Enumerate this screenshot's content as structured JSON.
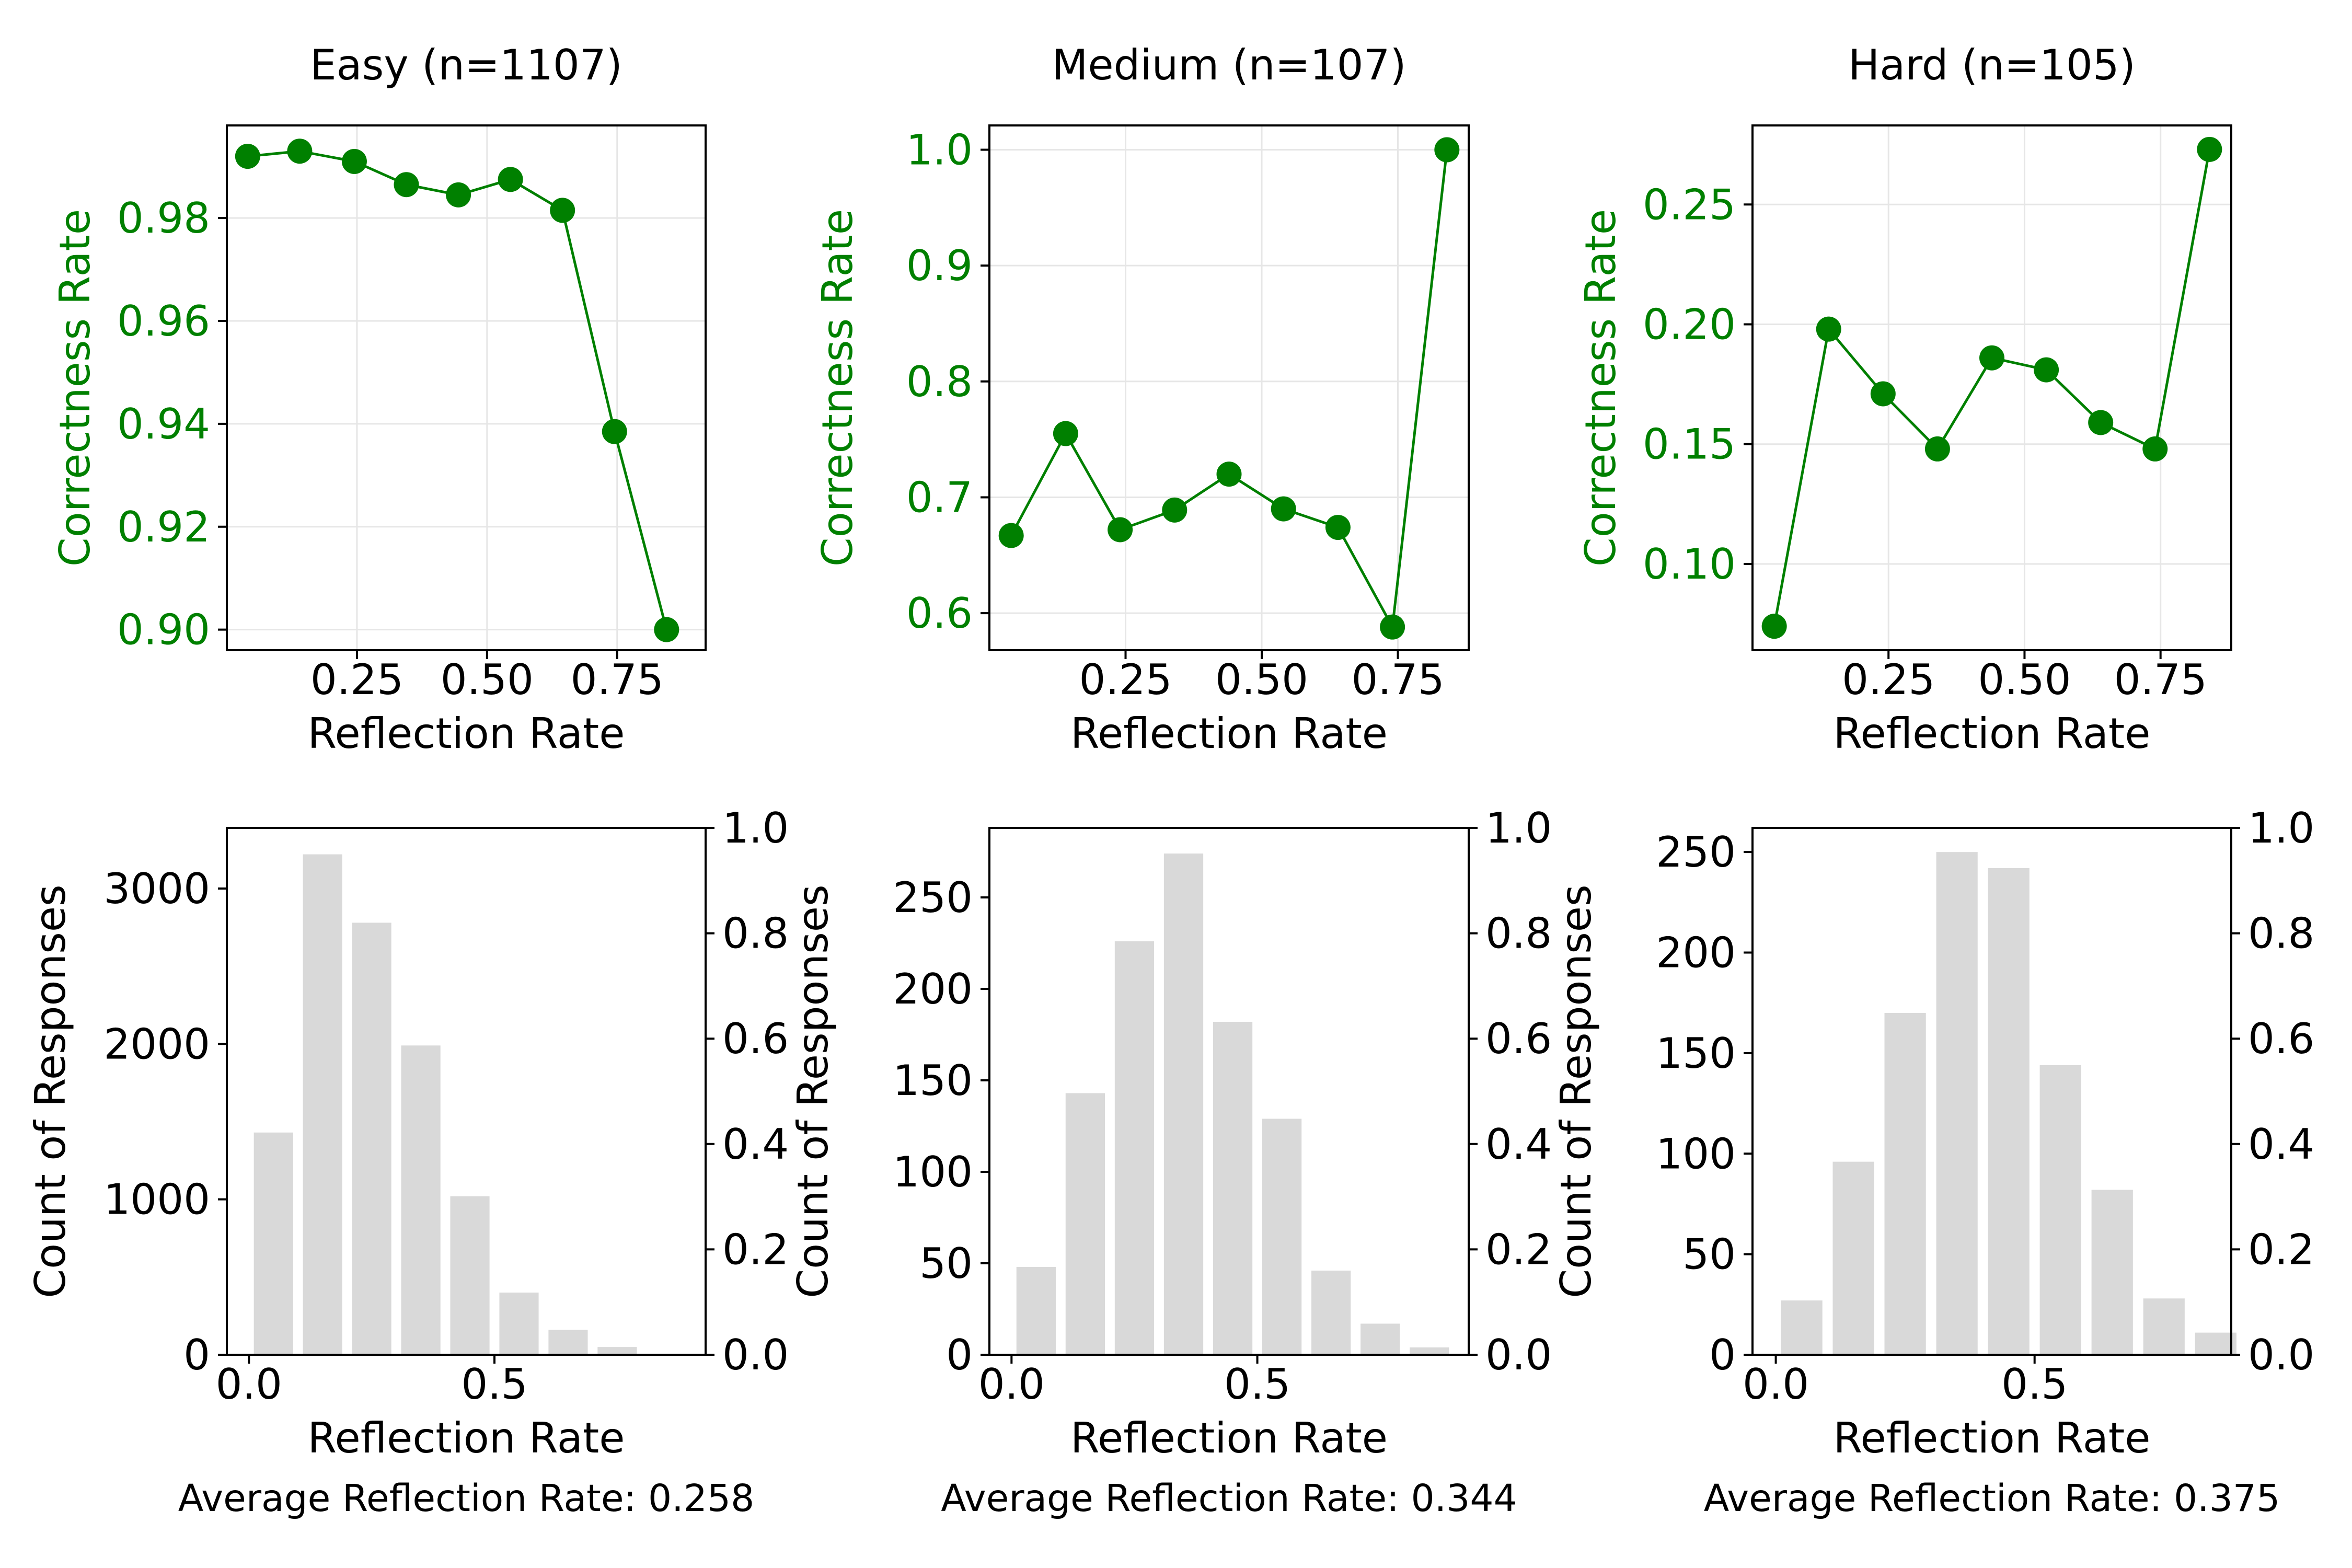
{
  "colors": {
    "line": "#008000",
    "bar": "#d9d9d9",
    "axis": "#000000",
    "grid": "#e6e6e6",
    "background": "#ffffff"
  },
  "chart_data": [
    {
      "id": "easy-correctness",
      "type": "line",
      "title": "Easy (n=1107)",
      "xlabel": "Reflection Rate",
      "ylabel": "Correctness Rate",
      "xlim": [
        0.0,
        0.92
      ],
      "ylim": [
        0.896,
        0.998
      ],
      "xticks": [
        0.25,
        0.5,
        0.75
      ],
      "xticklabels": [
        "0.25",
        "0.50",
        "0.75"
      ],
      "yticks": [
        0.9,
        0.92,
        0.94,
        0.96,
        0.98
      ],
      "yticklabels": [
        "0.90",
        "0.92",
        "0.94",
        "0.96",
        "0.98"
      ],
      "grid": true,
      "x": [
        0.04,
        0.14,
        0.245,
        0.345,
        0.445,
        0.545,
        0.645,
        0.745,
        0.845
      ],
      "y": [
        0.992,
        0.993,
        0.991,
        0.9865,
        0.9845,
        0.9875,
        0.9815,
        0.9385,
        0.9
      ]
    },
    {
      "id": "medium-correctness",
      "type": "line",
      "title": "Medium (n=107)",
      "xlabel": "Reflection Rate",
      "ylabel": "Correctness Rate",
      "xlim": [
        0.0,
        0.88
      ],
      "ylim": [
        0.568,
        1.021
      ],
      "xticks": [
        0.25,
        0.5,
        0.75
      ],
      "xticklabels": [
        "0.25",
        "0.50",
        "0.75"
      ],
      "yticks": [
        0.6,
        0.7,
        0.8,
        0.9,
        1.0
      ],
      "yticklabels": [
        "0.6",
        "0.7",
        "0.8",
        "0.9",
        "1.0"
      ],
      "grid": true,
      "x": [
        0.04,
        0.14,
        0.24,
        0.34,
        0.44,
        0.54,
        0.64,
        0.74,
        0.84
      ],
      "y": [
        0.667,
        0.755,
        0.672,
        0.689,
        0.72,
        0.69,
        0.674,
        0.588,
        1.0
      ]
    },
    {
      "id": "hard-correctness",
      "type": "line",
      "title": "Hard (n=105)",
      "xlabel": "Reflection Rate",
      "ylabel": "Correctness Rate",
      "xlim": [
        0.0,
        0.88
      ],
      "ylim": [
        0.064,
        0.283
      ],
      "xticks": [
        0.25,
        0.5,
        0.75
      ],
      "xticklabels": [
        "0.25",
        "0.50",
        "0.75"
      ],
      "yticks": [
        0.1,
        0.15,
        0.2,
        0.25
      ],
      "yticklabels": [
        "0.10",
        "0.15",
        "0.20",
        "0.25"
      ],
      "grid": true,
      "x": [
        0.04,
        0.14,
        0.24,
        0.34,
        0.44,
        0.54,
        0.64,
        0.74,
        0.84
      ],
      "y": [
        0.074,
        0.198,
        0.171,
        0.148,
        0.186,
        0.181,
        0.159,
        0.148,
        0.273
      ]
    },
    {
      "id": "easy-distribution",
      "type": "bar",
      "xlabel": "Reflection Rate",
      "ylabel": "Count of Responses",
      "xlim": [
        -0.045,
        0.93
      ],
      "ylim": [
        0,
        3390
      ],
      "xticks": [
        0.0,
        0.5
      ],
      "xticklabels": [
        "0.0",
        "0.5"
      ],
      "yticks": [
        0,
        1000,
        2000,
        3000
      ],
      "yticklabels": [
        "0",
        "1000",
        "2000",
        "3000"
      ],
      "y2ticks": [
        0,
        0.2,
        0.4,
        0.6,
        0.8,
        1.0
      ],
      "y2ticklabels": [
        "0.0",
        "0.2",
        "0.4",
        "0.6",
        "0.8",
        "1.0"
      ],
      "grid": false,
      "bar_width": 0.08,
      "x": [
        0.05,
        0.15,
        0.25,
        0.35,
        0.45,
        0.55,
        0.65,
        0.75
      ],
      "values": [
        1430,
        3220,
        2780,
        1990,
        1020,
        400,
        160,
        50
      ],
      "footnote": "Average Reflection Rate: 0.258"
    },
    {
      "id": "medium-distribution",
      "type": "bar",
      "xlabel": "Reflection Rate",
      "ylabel": "Count of Responses",
      "xlim": [
        -0.045,
        0.93
      ],
      "ylim": [
        0,
        288
      ],
      "xticks": [
        0.0,
        0.5
      ],
      "xticklabels": [
        "0.0",
        "0.5"
      ],
      "yticks": [
        0,
        50,
        100,
        150,
        200,
        250
      ],
      "yticklabels": [
        "0",
        "50",
        "100",
        "150",
        "200",
        "250"
      ],
      "y2ticks": [
        0,
        0.2,
        0.4,
        0.6,
        0.8,
        1.0
      ],
      "y2ticklabels": [
        "0.0",
        "0.2",
        "0.4",
        "0.6",
        "0.8",
        "1.0"
      ],
      "grid": false,
      "bar_width": 0.08,
      "x": [
        0.05,
        0.15,
        0.25,
        0.35,
        0.45,
        0.55,
        0.65,
        0.75,
        0.85
      ],
      "values": [
        48,
        143,
        226,
        274,
        182,
        129,
        46,
        17,
        4
      ],
      "footnote": "Average Reflection Rate: 0.344"
    },
    {
      "id": "hard-distribution",
      "type": "bar",
      "xlabel": "Reflection Rate",
      "ylabel": "Count of Responses",
      "xlim": [
        -0.045,
        0.88
      ],
      "ylim": [
        0,
        262
      ],
      "xticks": [
        0.0,
        0.5
      ],
      "xticklabels": [
        "0.0",
        "0.5"
      ],
      "yticks": [
        0,
        50,
        100,
        150,
        200,
        250
      ],
      "yticklabels": [
        "0",
        "50",
        "100",
        "150",
        "200",
        "250"
      ],
      "y2ticks": [
        0,
        0.2,
        0.4,
        0.6,
        0.8,
        1.0
      ],
      "y2ticklabels": [
        "0.0",
        "0.2",
        "0.4",
        "0.6",
        "0.8",
        "1.0"
      ],
      "grid": false,
      "bar_width": 0.08,
      "x": [
        0.05,
        0.15,
        0.25,
        0.35,
        0.45,
        0.55,
        0.65,
        0.75,
        0.85
      ],
      "values": [
        27,
        96,
        170,
        250,
        242,
        144,
        82,
        28,
        11
      ],
      "footnote": "Average Reflection Rate: 0.375"
    }
  ]
}
